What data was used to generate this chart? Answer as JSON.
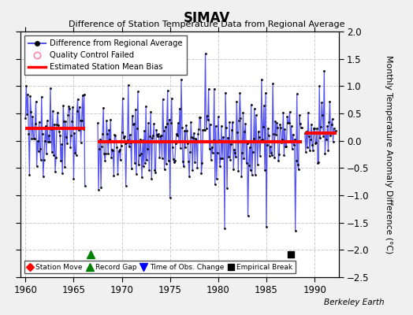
{
  "title": "SIMAV",
  "subtitle": "Difference of Station Temperature Data from Regional Average",
  "ylabel": "Monthly Temperature Anomaly Difference (°C)",
  "credit": "Berkeley Earth",
  "xlim": [
    1959.5,
    1992.5
  ],
  "ylim": [
    -2.5,
    2.0
  ],
  "yticks": [
    -2.5,
    -2,
    -1.5,
    -1,
    -0.5,
    0,
    0.5,
    1,
    1.5,
    2
  ],
  "xticks": [
    1960,
    1965,
    1970,
    1975,
    1980,
    1985,
    1990
  ],
  "bg_color": "#f0f0f0",
  "plot_bg_color": "#ffffff",
  "line_color": "#5555ee",
  "dot_color": "#000000",
  "bias_color": "#ff0000",
  "grid_color": "#cccccc",
  "bias_segments": [
    {
      "x_start": 1960.0,
      "x_end": 1966.2,
      "bias": 0.22
    },
    {
      "x_start": 1967.5,
      "x_end": 1988.7,
      "bias": -0.02
    },
    {
      "x_start": 1989.0,
      "x_end": 1992.3,
      "bias": 0.14
    }
  ],
  "record_gap_x": 1966.8,
  "record_gap_y": -2.08,
  "empirical_break_x": 1987.5,
  "empirical_break_y": -2.08,
  "seg1_start": 1960.0,
  "seg1_end": 1966.17,
  "seg2_start": 1967.5,
  "seg2_end": 1988.75,
  "seg3_start": 1989.0,
  "seg3_end": 1992.25,
  "seed": 42
}
